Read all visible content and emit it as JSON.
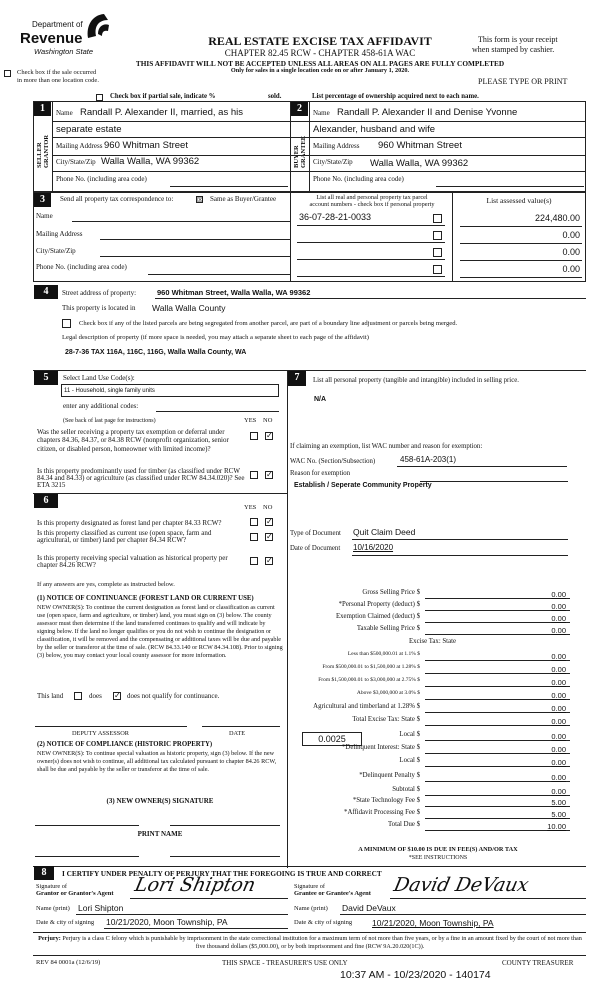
{
  "header": {
    "dept": "Department of",
    "revenue": "Revenue",
    "state": "Washington State",
    "title": "REAL ESTATE EXCISE TAX AFFIDAVIT",
    "chapter": "CHAPTER 82.45 RCW - CHAPTER 458-61A WAC",
    "warning": "THIS AFFIDAVIT WILL NOT BE ACCEPTED UNLESS ALL AREAS ON ALL PAGES ARE FULLY COMPLETED",
    "only": "Only for sales in a single location code on or after January 1, 2020.",
    "receipt1": "This form is your receipt",
    "receipt2": "when stamped by cashier.",
    "multi1": "Check box if the sale occurred",
    "multi2": "in more than one location code.",
    "please": "PLEASE TYPE OR PRINT",
    "partial": "Check box if partial sale, indicate %",
    "sold": "sold.",
    "percentage": "List percentage of ownership acquired next to each name."
  },
  "seller": {
    "num": "1",
    "side": "SELLER GRANTOR",
    "name_label": "Name",
    "name1": "Randall P. Alexander II, married, as his",
    "name2": "separate estate",
    "mail_label": "Mailing Address",
    "mail": "960 Whitman Street",
    "city_label": "City/State/Zip",
    "city": "Walla Walla, WA 99362",
    "phone_label": "Phone No. (including area code)"
  },
  "buyer": {
    "num": "2",
    "side": "BUYER GRANTEE",
    "name_label": "Name",
    "name1": "Randall P. Alexander II and Denise Yvonne",
    "name2": "Alexander, husband and wife",
    "mail_label": "Mailing Address",
    "mail": "960 Whitman Street",
    "city_label": "City/State/Zip",
    "city": "Walla Walla, WA 99362",
    "phone_label": "Phone No. (including area code)"
  },
  "section3": {
    "num": "3",
    "label": "Send all property tax correspondence to:",
    "same": "Same as Buyer/Grantee",
    "same_checked": true,
    "name_label": "Name",
    "mail_label": "Mailing Address",
    "city_label": "City/State/Zip",
    "phone_label": "Phone No. (including area code)",
    "parcel_header1": "List all real and personal property tax parcel",
    "parcel_header2": "account numbers - check box if personal property",
    "value_header": "List assessed value(s)",
    "parcels": [
      {
        "number": "36-07-28-21-0033",
        "value": "224,480.00"
      },
      {
        "number": "",
        "value": "0.00"
      },
      {
        "number": "",
        "value": "0.00"
      },
      {
        "number": "",
        "value": "0.00"
      }
    ]
  },
  "section4": {
    "num": "4",
    "street_label": "Street address of property:",
    "street": "960 Whitman Street, Walla Walla, WA 99362",
    "located_label": "This property is located in",
    "located": "Walla Walla County",
    "segregated": "Check box if any of the listed parcels are being segregated from another parcel, are part of a boundary line adjustment or parcels being merged.",
    "legal_label": "Legal description of property (if more space is needed, you may attach a separate sheet to each page of the affidavit)",
    "legal": "28-7-36 TAX 116A, 116C, 116G, Walla Walla County, WA"
  },
  "section5": {
    "num": "5",
    "label": "Select Land Use Code(s):",
    "code": "11 - Household, single family units",
    "additional": "enter any additional codes:",
    "see_back": "(See back of last page for instructions)",
    "yes": "YES",
    "no": "NO",
    "q1": "Was the seller receiving a property tax exemption or deferral under chapters 84.36, 84.37, or 84.38 RCW (nonprofit organization, senior citizen, or disabled person, homeowner with limited income)?",
    "q2": "Is this property predominantly used for timber (as classified under RCW 84.34 and 84.33) or agriculture (as classified under RCW 84.34.020)? See ETA 3215"
  },
  "section6": {
    "num": "6",
    "yes": "YES",
    "no": "NO",
    "q1": "Is this property designated as forest land per chapter 84.33 RCW?",
    "q2": "Is this property classified as current use (open space, farm and agricultural, or timber) land per chapter 84.34 RCW?",
    "q3": "Is this property receiving special valuation as historical property per chapter 84.26 RCW?",
    "if_yes": "If any answers are yes, complete as instructed below.",
    "n1_title": "(1) NOTICE OF CONTINUANCE (FOREST LAND OR CURRENT USE)",
    "n1_text": "NEW OWNER(S): To continue the current designation as forest land or classification as current use (open space, farm and agriculture, or timber) land, you must sign on (3) below. The county assessor must then determine if the land transferred continues to qualify and will indicate by signing below. If the land no longer qualifies or you do not wish to continue the designation or classification, it will be removed and the compensating or additional taxes will be due and payable by the seller or transferor at the time of sale. (RCW 84.33.140 or RCW 84.34.108). Prior to signing (3) below, you may contact your local county assessor for more information.",
    "this_land": "This land",
    "does": "does",
    "does_not": "does not qualify for continuance.",
    "deputy": "DEPUTY ASSESSOR",
    "date": "DATE",
    "n2_title": "(2) NOTICE OF COMPLIANCE (HISTORIC PROPERTY)",
    "n2_text": "NEW OWNER(S): To continue special valuation as historic property, sign (3) below. If the new owner(s) does not wish to continue, all additional tax calculated pursuant to chapter 84.26 RCW, shall be due and payable by the seller or transferor at the time of sale.",
    "n3_title": "(3) NEW OWNER(S) SIGNATURE",
    "print_name": "PRINT NAME"
  },
  "section7": {
    "num": "7",
    "label": "List all personal property (tangible and intangible) included in selling price.",
    "personal": "N/A",
    "claiming": "If claiming an exemption, list WAC number and reason for exemption:",
    "wac_label": "WAC No. (Section/Subsection)",
    "wac": "458-61A-203(1)",
    "reason_label": "Reason for exemption",
    "reason": "Establish / Seperate Community Property",
    "type_label": "Type of Document",
    "type": "Quit Claim Deed",
    "date_label": "Date of Document",
    "date": "10/16/2020",
    "local_rate": "0.0025"
  },
  "fees": [
    {
      "label": "Gross Selling Price  $",
      "value": "0.00"
    },
    {
      "label": "*Personal Property (deduct)  $",
      "value": "0.00"
    },
    {
      "label": "Exemption Claimed (deduct)  $",
      "value": "0.00"
    },
    {
      "label": "Taxable Selling Price  $",
      "value": "0.00"
    },
    {
      "label": "Excise Tax: State",
      "value": null
    },
    {
      "label": "Less than $500,000.01 at 1.1%  $",
      "value": "0.00"
    },
    {
      "label": "From $500,000.01 to $1,500,000 at 1.28%  $",
      "value": "0.00"
    },
    {
      "label": "From $1,500,000.01 to $3,000,000 at 2.75%  $",
      "value": "0.00"
    },
    {
      "label": "Above $3,000,000 at 3.0%  $",
      "value": "0.00"
    },
    {
      "label": "Agricultural and timberland at 1.28%  $",
      "value": "0.00"
    },
    {
      "label": "Total Excise Tax: State  $",
      "value": "0.00"
    },
    {
      "label": "Local  $",
      "value": "0.00"
    },
    {
      "label": "*Delinquent Interest: State  $",
      "value": "0.00"
    },
    {
      "label": "Local  $",
      "value": "0.00"
    },
    {
      "label": "*Delinquent Penalty  $",
      "value": "0.00"
    },
    {
      "label": "Subtotal  $",
      "value": "0.00"
    },
    {
      "label": "*State Technology Fee  $",
      "value": "5.00"
    },
    {
      "label": "*Affidavit Processing Fee  $",
      "value": "5.00"
    },
    {
      "label": "Total Due  $",
      "value": "10.00"
    }
  ],
  "fees_note1": "A MINIMUM OF $10.00 IS DUE IN FEE(S) AND/OR TAX",
  "fees_note2": "*SEE INSTRUCTIONS",
  "section8": {
    "num": "8",
    "certify": "I CERTIFY UNDER PENALTY OF PERJURY THAT THE FOREGOING IS TRUE AND CORRECT",
    "grantor_sig_label1": "Signature of",
    "grantor_sig_label2": "Grantor or Grantor's Agent",
    "grantee_sig_label1": "Signature of",
    "grantee_sig_label2": "Grantee or Grantee's Agent",
    "grantor_sig": "Lori Shipton",
    "grantee_sig": "David DeVaux",
    "name_label": "Name (print)",
    "grantor_name": "Lori Shipton",
    "grantee_name": "David DeVaux",
    "date_label": "Date & city of signing",
    "grantor_date": "10/21/2020, Moon Township, PA",
    "grantee_date": "10/21/2020, Moon Township, PA"
  },
  "footer": {
    "perjury_bold": "Perjury:",
    "perjury": "Perjury is a class C felony which is punishable by imprisonment in the state correctional institution for a maximum term of not more than five years, or by a fine in an amount fixed by the court of not more than five thousand dollars ($5,000.00), or by both imprisonment and fine (RCW 9A.20.020(1C)).",
    "rev": "REV 84 0001a (12/6/19)",
    "treasurer_space": "THIS SPACE - TREASURER'S USE ONLY",
    "county_treasurer": "COUNTY TREASURER",
    "stamp": "10:37 AM - 10/23/2020 - 140174"
  }
}
